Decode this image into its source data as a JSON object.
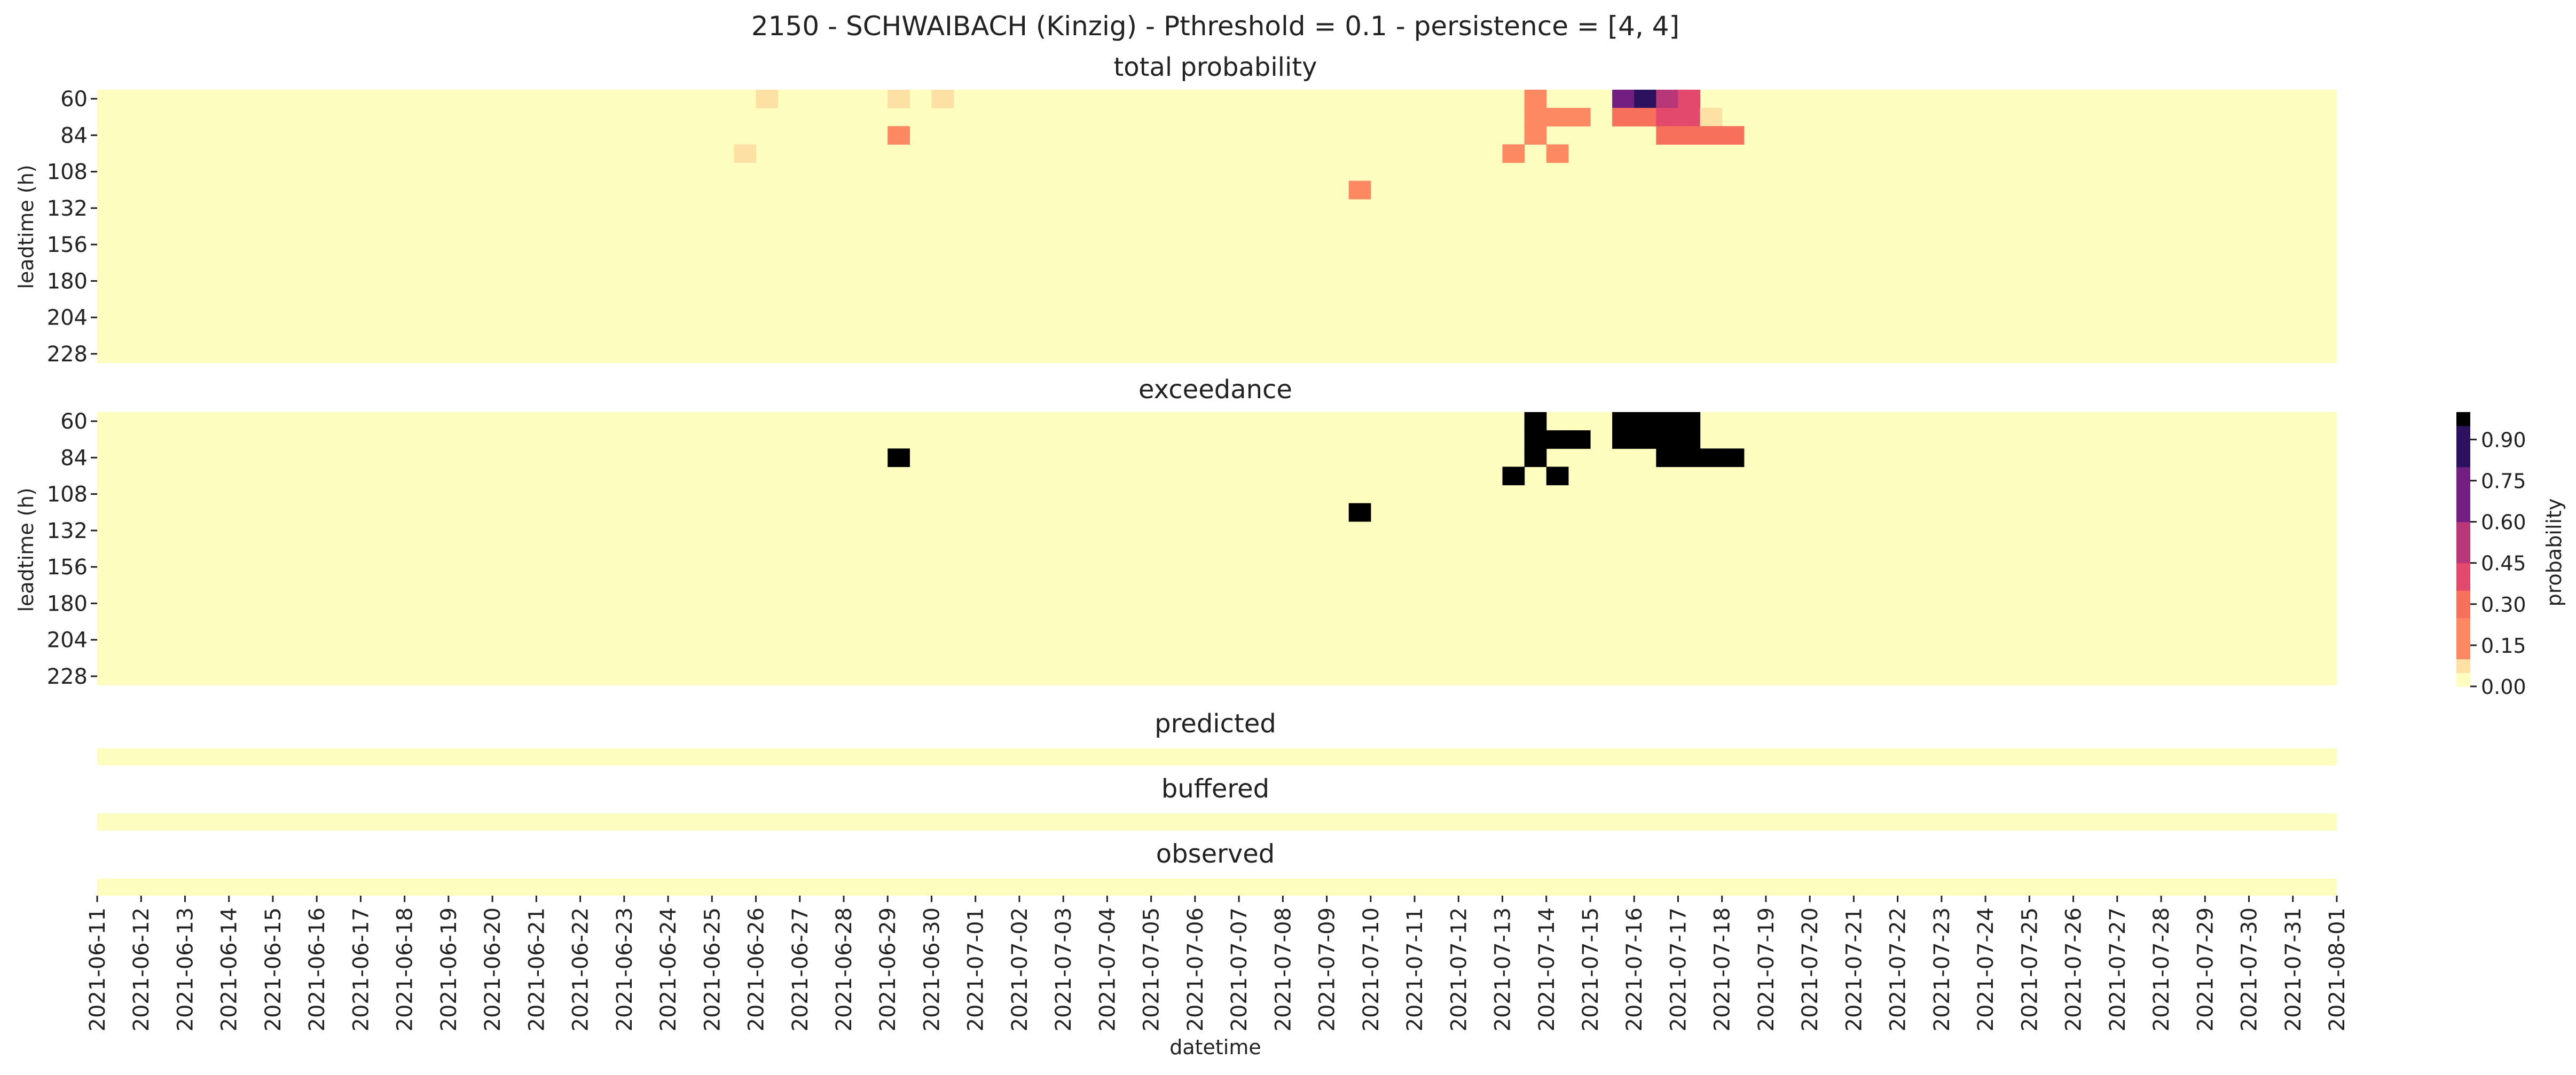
{
  "title": "2150 - SCHWAIBACH (Kinzig) - Pthreshold = 0.1 - persistence = [4, 4]",
  "colors": {
    "background": "#fcfdbf",
    "p05": "#fde1a4",
    "p20": "#fc8961",
    "p30": "#f7705c",
    "p40": "#e3496c",
    "p50": "#b73779",
    "p70": "#721f81",
    "p90": "#2c115f",
    "exceed": "#000000",
    "text": "#222222"
  },
  "chart_data": [
    {
      "type": "heatmap",
      "title": "total probability",
      "ylabel": "leadtime (h)",
      "yticks": [
        "60",
        "84",
        "108",
        "132",
        "156",
        "180",
        "204",
        "228"
      ],
      "ylim": [
        60,
        240
      ],
      "leadtime_step_h": 12,
      "xlim": [
        "2021-06-11",
        "2021-08-01"
      ],
      "time_step_h": 12,
      "default_value": 0,
      "cells": [
        {
          "date": "2021-06-25",
          "hour": 12,
          "leadtime": 96,
          "value": 0.05
        },
        {
          "date": "2021-06-26",
          "hour": 0,
          "leadtime": 60,
          "value": 0.05
        },
        {
          "date": "2021-06-29",
          "hour": 0,
          "leadtime": 60,
          "value": 0.05
        },
        {
          "date": "2021-06-29",
          "hour": 0,
          "leadtime": 84,
          "value": 0.2
        },
        {
          "date": "2021-06-30",
          "hour": 0,
          "leadtime": 60,
          "value": 0.05
        },
        {
          "date": "2021-07-09",
          "hour": 12,
          "leadtime": 120,
          "value": 0.2
        },
        {
          "date": "2021-07-13",
          "hour": 0,
          "leadtime": 96,
          "value": 0.2
        },
        {
          "date": "2021-07-13",
          "hour": 12,
          "leadtime": 60,
          "value": 0.2
        },
        {
          "date": "2021-07-13",
          "hour": 12,
          "leadtime": 72,
          "value": 0.2
        },
        {
          "date": "2021-07-13",
          "hour": 12,
          "leadtime": 84,
          "value": 0.2
        },
        {
          "date": "2021-07-14",
          "hour": 0,
          "leadtime": 72,
          "value": 0.2
        },
        {
          "date": "2021-07-14",
          "hour": 0,
          "leadtime": 96,
          "value": 0.2
        },
        {
          "date": "2021-07-14",
          "hour": 12,
          "leadtime": 72,
          "value": 0.2
        },
        {
          "date": "2021-07-15",
          "hour": 12,
          "leadtime": 60,
          "value": 0.7
        },
        {
          "date": "2021-07-15",
          "hour": 12,
          "leadtime": 72,
          "value": 0.3
        },
        {
          "date": "2021-07-16",
          "hour": 0,
          "leadtime": 60,
          "value": 0.9
        },
        {
          "date": "2021-07-16",
          "hour": 0,
          "leadtime": 72,
          "value": 0.3
        },
        {
          "date": "2021-07-16",
          "hour": 12,
          "leadtime": 60,
          "value": 0.5
        },
        {
          "date": "2021-07-16",
          "hour": 12,
          "leadtime": 72,
          "value": 0.4
        },
        {
          "date": "2021-07-16",
          "hour": 12,
          "leadtime": 84,
          "value": 0.3
        },
        {
          "date": "2021-07-17",
          "hour": 0,
          "leadtime": 60,
          "value": 0.4
        },
        {
          "date": "2021-07-17",
          "hour": 0,
          "leadtime": 72,
          "value": 0.4
        },
        {
          "date": "2021-07-17",
          "hour": 0,
          "leadtime": 84,
          "value": 0.3
        },
        {
          "date": "2021-07-17",
          "hour": 12,
          "leadtime": 72,
          "value": 0.05
        },
        {
          "date": "2021-07-17",
          "hour": 12,
          "leadtime": 84,
          "value": 0.3
        },
        {
          "date": "2021-07-18",
          "hour": 0,
          "leadtime": 84,
          "value": 0.3
        }
      ]
    },
    {
      "type": "heatmap",
      "title": "exceedance",
      "ylabel": "leadtime (h)",
      "yticks": [
        "60",
        "84",
        "108",
        "132",
        "156",
        "180",
        "204",
        "228"
      ],
      "ylim": [
        60,
        240
      ],
      "leadtime_step_h": 12,
      "xlim": [
        "2021-06-11",
        "2021-08-01"
      ],
      "time_step_h": 12,
      "default_value": 0,
      "cells": [
        {
          "date": "2021-06-29",
          "hour": 0,
          "leadtime": 84,
          "value": 1
        },
        {
          "date": "2021-07-09",
          "hour": 12,
          "leadtime": 120,
          "value": 1
        },
        {
          "date": "2021-07-13",
          "hour": 0,
          "leadtime": 96,
          "value": 1
        },
        {
          "date": "2021-07-13",
          "hour": 12,
          "leadtime": 60,
          "value": 1
        },
        {
          "date": "2021-07-13",
          "hour": 12,
          "leadtime": 72,
          "value": 1
        },
        {
          "date": "2021-07-13",
          "hour": 12,
          "leadtime": 84,
          "value": 1
        },
        {
          "date": "2021-07-14",
          "hour": 0,
          "leadtime": 72,
          "value": 1
        },
        {
          "date": "2021-07-14",
          "hour": 0,
          "leadtime": 96,
          "value": 1
        },
        {
          "date": "2021-07-14",
          "hour": 12,
          "leadtime": 72,
          "value": 1
        },
        {
          "date": "2021-07-15",
          "hour": 12,
          "leadtime": 60,
          "value": 1
        },
        {
          "date": "2021-07-15",
          "hour": 12,
          "leadtime": 72,
          "value": 1
        },
        {
          "date": "2021-07-16",
          "hour": 0,
          "leadtime": 60,
          "value": 1
        },
        {
          "date": "2021-07-16",
          "hour": 0,
          "leadtime": 72,
          "value": 1
        },
        {
          "date": "2021-07-16",
          "hour": 12,
          "leadtime": 60,
          "value": 1
        },
        {
          "date": "2021-07-16",
          "hour": 12,
          "leadtime": 72,
          "value": 1
        },
        {
          "date": "2021-07-16",
          "hour": 12,
          "leadtime": 84,
          "value": 1
        },
        {
          "date": "2021-07-17",
          "hour": 0,
          "leadtime": 60,
          "value": 1
        },
        {
          "date": "2021-07-17",
          "hour": 0,
          "leadtime": 72,
          "value": 1
        },
        {
          "date": "2021-07-17",
          "hour": 0,
          "leadtime": 84,
          "value": 1
        },
        {
          "date": "2021-07-17",
          "hour": 12,
          "leadtime": 84,
          "value": 1
        },
        {
          "date": "2021-07-18",
          "hour": 0,
          "leadtime": 84,
          "value": 1
        }
      ]
    },
    {
      "type": "heatmap",
      "title": "predicted",
      "xlim": [
        "2021-06-11",
        "2021-08-01"
      ],
      "default_value": 0,
      "cells": []
    },
    {
      "type": "heatmap",
      "title": "buffered",
      "xlim": [
        "2021-06-11",
        "2021-08-01"
      ],
      "default_value": 0,
      "cells": []
    },
    {
      "type": "heatmap",
      "title": "observed",
      "xlabel": "datetime",
      "xlim": [
        "2021-06-11",
        "2021-08-01"
      ],
      "xticks": [
        "2021-06-11",
        "2021-06-12",
        "2021-06-13",
        "2021-06-14",
        "2021-06-15",
        "2021-06-16",
        "2021-06-17",
        "2021-06-18",
        "2021-06-19",
        "2021-06-20",
        "2021-06-21",
        "2021-06-22",
        "2021-06-23",
        "2021-06-24",
        "2021-06-25",
        "2021-06-26",
        "2021-06-27",
        "2021-06-28",
        "2021-06-29",
        "2021-06-30",
        "2021-07-01",
        "2021-07-02",
        "2021-07-03",
        "2021-07-04",
        "2021-07-05",
        "2021-07-06",
        "2021-07-07",
        "2021-07-08",
        "2021-07-09",
        "2021-07-10",
        "2021-07-11",
        "2021-07-12",
        "2021-07-13",
        "2021-07-14",
        "2021-07-15",
        "2021-07-16",
        "2021-07-17",
        "2021-07-18",
        "2021-07-19",
        "2021-07-20",
        "2021-07-21",
        "2021-07-22",
        "2021-07-23",
        "2021-07-24",
        "2021-07-25",
        "2021-07-26",
        "2021-07-27",
        "2021-07-28",
        "2021-07-29",
        "2021-07-30",
        "2021-07-31",
        "2021-08-01"
      ],
      "default_value": 0,
      "cells": []
    }
  ],
  "colorbar": {
    "label": "probability",
    "range": [
      0,
      1
    ],
    "ticks": [
      "0.00",
      "0.15",
      "0.30",
      "0.45",
      "0.60",
      "0.75",
      "0.90"
    ],
    "tick_values": [
      0,
      0.15,
      0.3,
      0.45,
      0.6,
      0.75,
      0.9
    ]
  }
}
